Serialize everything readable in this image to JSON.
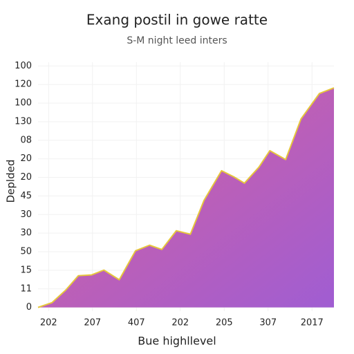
{
  "chart_data": {
    "type": "area",
    "title": "Exang postil in gowe ratte",
    "subtitle": "S-M night leed inters",
    "x_label": "Bue highllevel",
    "y_label": "Deplded",
    "x": [
      -0.24,
      0.08,
      0.39,
      0.68,
      0.98,
      1.26,
      1.61,
      1.98,
      2.3,
      2.58,
      2.91,
      3.23,
      3.54,
      3.94,
      4.22,
      4.46,
      4.79,
      5.04,
      5.4,
      5.75,
      6.17,
      6.5
    ],
    "values": [
      0,
      0.26,
      0.93,
      1.71,
      1.75,
      2.01,
      1.49,
      3.05,
      3.35,
      3.12,
      4.13,
      3.94,
      5.76,
      7.36,
      7.03,
      6.69,
      7.55,
      8.44,
      7.96,
      10.15,
      11.52,
      11.82
    ],
    "line_color": "#e6c63c",
    "fill_colors": [
      "#d8629c",
      "#a05dd2"
    ],
    "xlim": [
      -0.24,
      6.5
    ],
    "xticks": [
      {
        "value": 0,
        "label": "202"
      },
      {
        "value": 1,
        "label": "207"
      },
      {
        "value": 2,
        "label": "407"
      },
      {
        "value": 3,
        "label": "202"
      },
      {
        "value": 4,
        "label": "205"
      },
      {
        "value": 5,
        "label": "307"
      },
      {
        "value": 6,
        "label": "2017"
      }
    ],
    "ylim": [
      -0.2,
      13.2
    ],
    "yticks": [
      0,
      {
        "value": 1,
        "label": "11"
      },
      {
        "value": 2,
        "label": "15"
      },
      {
        "value": 3,
        "label": "50"
      },
      {
        "value": 4,
        "label": "30"
      },
      {
        "value": 5,
        "label": "30"
      },
      {
        "value": 6,
        "label": "45"
      },
      {
        "value": 7,
        "label": "20"
      },
      {
        "value": 8,
        "label": "20"
      },
      {
        "value": 9,
        "label": "08"
      },
      {
        "value": 10,
        "label": "130"
      },
      {
        "value": 11,
        "label": "100"
      },
      {
        "value": 12,
        "label": "120"
      },
      {
        "value": 13,
        "label": "100"
      }
    ],
    "grid": true
  }
}
